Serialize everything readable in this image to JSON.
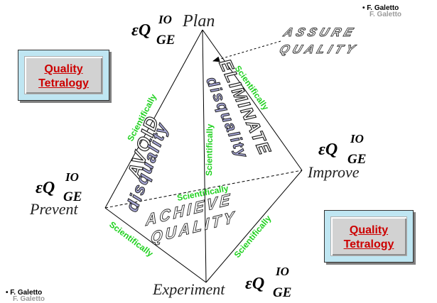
{
  "credits": {
    "top_right": "F. Galetto",
    "bottom_left": "F. Galetto"
  },
  "quality_boxes": {
    "top_left": [
      "Quality",
      "Tetralogy"
    ],
    "bottom_right": [
      "Quality",
      "Tetralogy"
    ]
  },
  "vertices": {
    "plan": "Plan",
    "improve": "Improve",
    "prevent": "Prevent",
    "experiment": "Experiment"
  },
  "formula": {
    "symbol": "εQ",
    "superscript": "IO",
    "subscript": "GE"
  },
  "edge_label": "Scientifically",
  "banners": {
    "assure_quality": [
      "ASSURE",
      "QUALITY"
    ],
    "avoid_disquality": [
      "AVOID",
      "disquality"
    ],
    "eliminate_disquality": [
      "ELIMINATE",
      "disquality"
    ],
    "achieve_quality": [
      "ACHIEVE",
      "QUALITY"
    ]
  }
}
